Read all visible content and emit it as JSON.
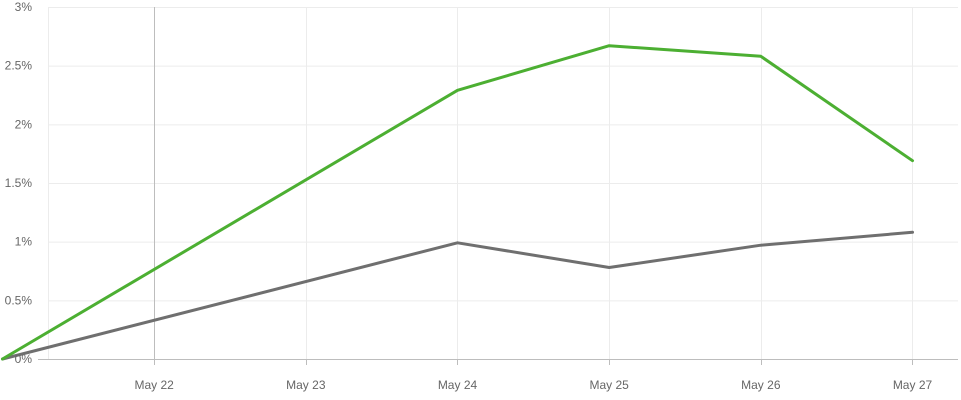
{
  "chart_data": {
    "type": "line",
    "title": "",
    "xlabel": "",
    "ylabel": "",
    "x_ticks": [
      "May 22",
      "May 23",
      "May 24",
      "May 25",
      "May 26",
      "May 27"
    ],
    "y_ticks": [
      "0%",
      "0.5%",
      "1%",
      "1.5%",
      "2%",
      "2.5%",
      "3%"
    ],
    "ylim": [
      0,
      3
    ],
    "x": [
      "May 21",
      "May 24",
      "May 25",
      "May 26",
      "May 27"
    ],
    "series": [
      {
        "color": "#4caf32",
        "values": [
          0,
          2.29,
          2.67,
          2.58,
          1.69
        ]
      },
      {
        "color": "#6f6f6f",
        "values": [
          0,
          0.99,
          0.78,
          0.97,
          1.08
        ]
      }
    ],
    "grid": true,
    "legend": "none"
  }
}
